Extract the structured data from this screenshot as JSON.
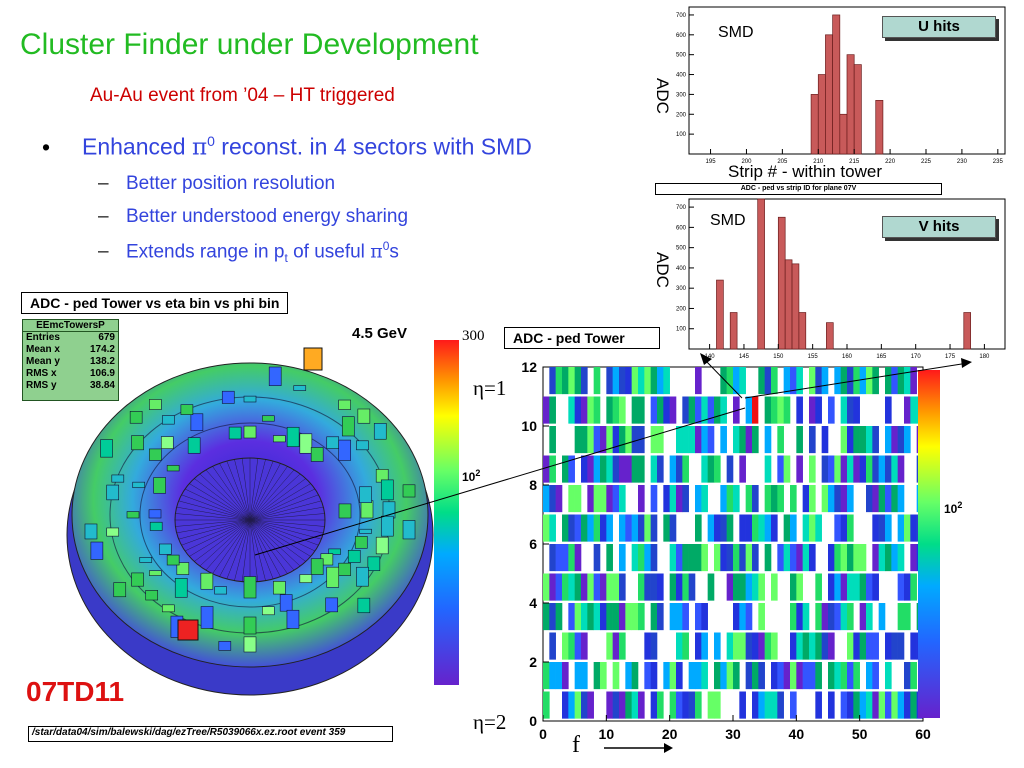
{
  "title": "Cluster Finder under Development",
  "subtitle": "Au-Au event from ’04 – HT triggered",
  "bullet": {
    "marker": "•",
    "text_pre": "Enhanced ",
    "pi": "π",
    "sup0": "0",
    "text_post": " reconst. in 4 sectors with SMD"
  },
  "subbullets": [
    {
      "dash": "–",
      "text": "Better position resolution"
    },
    {
      "dash": "–",
      "text": "Better understood energy sharing"
    },
    {
      "dash": "–",
      "text_pre": "Extends range in p",
      "sub": "t",
      "text_mid": " of useful ",
      "pi": "π",
      "sup0": "0",
      "text_post": "s"
    }
  ],
  "tower_plot": {
    "title": "ADC - ped Tower vs eta bin vs phi bin",
    "energy_label": "4.5 GeV",
    "stats": {
      "name": "EEmcTowersP",
      "rows": [
        [
          "Entries",
          "679"
        ],
        [
          "Mean x",
          "174.2"
        ],
        [
          "Mean y",
          "138.2"
        ],
        [
          "RMS x",
          "106.9"
        ],
        [
          "RMS y",
          "38.84"
        ]
      ]
    },
    "colorbar_top": "300",
    "colorbar_mid": "10",
    "colorbar_mid_exp": "2"
  },
  "lego_plot": {
    "title": "ADC - ped Tower",
    "eta1": "η=1",
    "eta2": "η=2",
    "phi_label": "f",
    "colorbar_mid": "10",
    "colorbar_mid_exp": "2",
    "chart_data": {
      "type": "heatmap",
      "xlim": [
        0,
        60
      ],
      "ylim": [
        0,
        12
      ],
      "xticks": [
        "0",
        "10",
        "20",
        "30",
        "40",
        "50",
        "60"
      ],
      "yticks": [
        "0",
        "2",
        "4",
        "6",
        "8",
        "10",
        "12"
      ]
    }
  },
  "u_hist": {
    "label_smd": "SMD",
    "hits": "U hits",
    "ylabel": "ADC",
    "xlabel": "Strip #  - within tower",
    "chart_data": {
      "type": "bar",
      "xticks": [
        "195",
        "200",
        "205",
        "210",
        "215",
        "220",
        "225",
        "230",
        "235"
      ],
      "yticks": [
        "100",
        "200",
        "300",
        "400",
        "500",
        "600",
        "700"
      ],
      "xlim": [
        192,
        236
      ],
      "ylim": [
        0,
        740
      ],
      "bins": [
        [
          209,
          300
        ],
        [
          210,
          400
        ],
        [
          211,
          600
        ],
        [
          212,
          700
        ],
        [
          213,
          200
        ],
        [
          214,
          500
        ],
        [
          215,
          450
        ],
        [
          218,
          270
        ]
      ]
    }
  },
  "v_caption": "ADC - ped vs strip ID for plane 07V",
  "v_hist": {
    "label_smd": "SMD",
    "hits": "V hits",
    "ylabel": "ADC",
    "chart_data": {
      "type": "bar",
      "xticks": [
        "140",
        "145",
        "150",
        "155",
        "160",
        "165",
        "170",
        "175",
        "180"
      ],
      "yticks": [
        "100",
        "200",
        "300",
        "400",
        "500",
        "600",
        "700"
      ],
      "xlim": [
        137,
        183
      ],
      "ylim": [
        0,
        740
      ],
      "bins": [
        [
          141,
          340
        ],
        [
          143,
          180
        ],
        [
          147,
          780
        ],
        [
          150,
          650
        ],
        [
          151,
          440
        ],
        [
          152,
          420
        ],
        [
          153,
          180
        ],
        [
          157,
          130
        ],
        [
          177,
          180
        ]
      ]
    }
  },
  "run_id": "07TD11",
  "footer_path": "/star/data04/sim/balewski/dag/ezTree/R5039066x.ez.root event 359",
  "colors": {
    "title": "#22bb22",
    "subtitle": "#cc0000",
    "bullet": "#3344dd",
    "hist_fill": "#c85a5a",
    "stat_bg": "#8fd08f"
  }
}
